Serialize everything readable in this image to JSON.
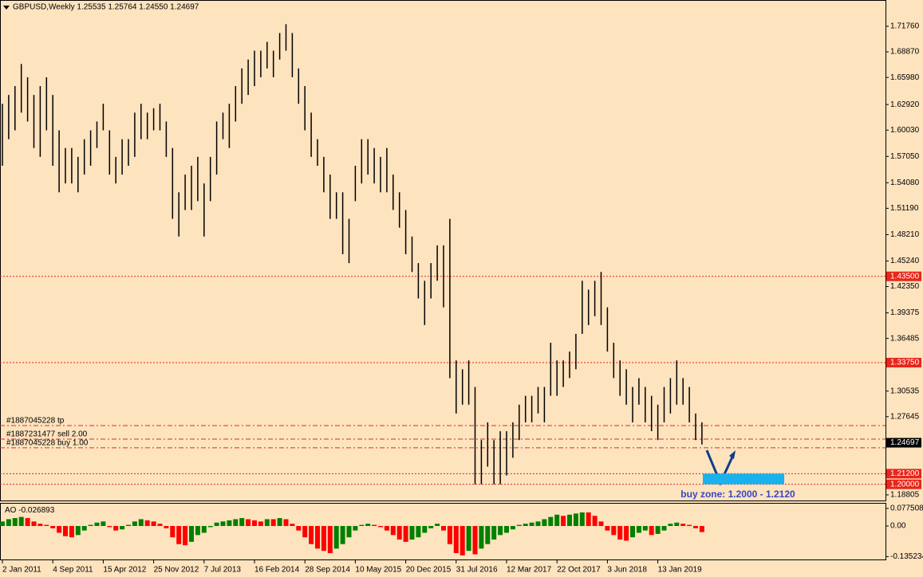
{
  "chart_data": [
    {
      "type": "bar",
      "header": "GBPUSD,Weekly  1.25535 1.25764 1.24550 1.24697",
      "color": "#000000",
      "categories": [
        "2 Jan 2011",
        null,
        null,
        null,
        null,
        null,
        null,
        null,
        "4 Sep 2011",
        null,
        null,
        null,
        null,
        null,
        null,
        null,
        "15 Apr 2012",
        null,
        null,
        null,
        null,
        null,
        null,
        null,
        "25 Nov 2012",
        null,
        null,
        null,
        null,
        null,
        null,
        null,
        "7 Jul 2013",
        null,
        null,
        null,
        null,
        null,
        null,
        null,
        "16 Feb 2014",
        null,
        null,
        null,
        null,
        null,
        null,
        null,
        "28 Sep 2014",
        null,
        null,
        null,
        null,
        null,
        null,
        null,
        "10 May 2015",
        null,
        null,
        null,
        null,
        null,
        null,
        null,
        "20 Dec 2015",
        null,
        null,
        null,
        null,
        null,
        null,
        null,
        "31 Jul 2016",
        null,
        null,
        null,
        null,
        null,
        null,
        null,
        "12 Mar 2017",
        null,
        null,
        null,
        null,
        null,
        null,
        null,
        "22 Oct 2017",
        null,
        null,
        null,
        null,
        null,
        null,
        null,
        "3 Jun 2018",
        null,
        null,
        null,
        null,
        null,
        null,
        null,
        "13 Jan 2019",
        null,
        null,
        null,
        null,
        null,
        null,
        null
      ],
      "series": [
        {
          "name": "high",
          "values": [
            1.63,
            1.64,
            1.65,
            1.675,
            1.66,
            1.64,
            1.65,
            1.66,
            1.64,
            1.6,
            1.58,
            1.58,
            1.57,
            1.59,
            1.6,
            1.61,
            1.63,
            1.6,
            1.57,
            1.59,
            1.59,
            1.62,
            1.63,
            1.62,
            1.625,
            1.63,
            1.61,
            1.58,
            1.53,
            1.55,
            1.56,
            1.57,
            1.54,
            1.57,
            1.61,
            1.62,
            1.63,
            1.65,
            1.67,
            1.68,
            1.69,
            1.69,
            1.7,
            1.69,
            1.71,
            1.72,
            1.71,
            1.67,
            1.65,
            1.62,
            1.59,
            1.57,
            1.55,
            1.53,
            1.53,
            1.5,
            1.56,
            1.59,
            1.59,
            1.58,
            1.57,
            1.58,
            1.55,
            1.53,
            1.51,
            1.48,
            1.45,
            1.43,
            1.45,
            1.47,
            1.47,
            1.5,
            1.34,
            1.33,
            1.34,
            1.31,
            1.25,
            1.27,
            1.25,
            1.26,
            1.26,
            1.27,
            1.29,
            1.3,
            1.3,
            1.31,
            1.31,
            1.36,
            1.34,
            1.34,
            1.35,
            1.37,
            1.43,
            1.42,
            1.43,
            1.44,
            1.4,
            1.36,
            1.34,
            1.33,
            1.31,
            1.32,
            1.31,
            1.3,
            1.29,
            1.31,
            1.32,
            1.34,
            1.32,
            1.31,
            1.28,
            1.27
          ]
        },
        {
          "name": "low",
          "values": [
            1.56,
            1.59,
            1.6,
            1.62,
            1.61,
            1.58,
            1.57,
            1.6,
            1.56,
            1.53,
            1.54,
            1.54,
            1.53,
            1.55,
            1.56,
            1.58,
            1.6,
            1.55,
            1.54,
            1.55,
            1.56,
            1.57,
            1.59,
            1.59,
            1.6,
            1.6,
            1.57,
            1.5,
            1.48,
            1.51,
            1.51,
            1.52,
            1.48,
            1.52,
            1.55,
            1.59,
            1.58,
            1.61,
            1.63,
            1.64,
            1.65,
            1.66,
            1.67,
            1.66,
            1.68,
            1.69,
            1.66,
            1.63,
            1.6,
            1.57,
            1.56,
            1.53,
            1.5,
            1.5,
            1.46,
            1.45,
            1.52,
            1.54,
            1.55,
            1.54,
            1.53,
            1.53,
            1.51,
            1.49,
            1.46,
            1.44,
            1.41,
            1.38,
            1.41,
            1.43,
            1.4,
            1.32,
            1.28,
            1.29,
            1.29,
            1.2,
            1.2,
            1.22,
            1.2,
            1.2,
            1.21,
            1.23,
            1.25,
            1.27,
            1.27,
            1.28,
            1.27,
            1.3,
            1.3,
            1.31,
            1.32,
            1.33,
            1.37,
            1.38,
            1.39,
            1.38,
            1.35,
            1.32,
            1.3,
            1.29,
            1.27,
            1.29,
            1.27,
            1.26,
            1.25,
            1.27,
            1.28,
            1.29,
            1.29,
            1.27,
            1.25,
            1.245
          ]
        }
      ],
      "ylim": [
        1.1817,
        1.7473
      ],
      "yticks": [
        {
          "value": 1.7176,
          "label": "1.71760"
        },
        {
          "value": 1.6887,
          "label": "1.68870"
        },
        {
          "value": 1.6598,
          "label": "1.65980"
        },
        {
          "value": 1.6292,
          "label": "1.62920"
        },
        {
          "value": 1.6003,
          "label": "1.60030"
        },
        {
          "value": 1.5705,
          "label": "1.57050"
        },
        {
          "value": 1.5408,
          "label": "1.54080"
        },
        {
          "value": 1.5119,
          "label": "1.51190"
        },
        {
          "value": 1.4821,
          "label": "1.48210"
        },
        {
          "value": 1.4524,
          "label": "1.45240"
        },
        {
          "value": 1.4235,
          "label": "1.42350"
        },
        1.39375,
        1.36485,
        1.30535,
        1.27645,
        1.18805
      ],
      "levels": [
        {
          "value": 1.435,
          "label": "1.43500"
        },
        {
          "value": 1.3375,
          "label": "1.33750"
        },
        {
          "value": 1.212,
          "label": "1.21200"
        },
        {
          "value": 1.2,
          "label": "1.20000"
        }
      ],
      "level_color": "#e8261a",
      "orders": [
        {
          "label": "#1887045228 tp",
          "value": 1.2664
        },
        {
          "label": "#1887231477 sell 2.00",
          "value": 1.2511
        },
        {
          "label": "#1887045228 buy 1.00",
          "value": 1.2412
        }
      ],
      "current_price": {
        "value": 1.24697,
        "label": "1.24697"
      },
      "buy_zone": [
        1.2,
        1.212
      ],
      "zone_color": "#1ab2ee",
      "annotation": "buy zone: 1.2000 - 1.2120"
    },
    {
      "type": "histogram",
      "title": "AO",
      "colors": [
        "#008000",
        "#ff0000"
      ],
      "values": [
        0.02,
        0.03,
        0.035,
        0.04,
        0.035,
        0.02,
        0.01,
        0.005,
        -0.01,
        -0.03,
        -0.045,
        -0.05,
        -0.04,
        -0.02,
        0.005,
        0.015,
        0.02,
        -0.005,
        -0.02,
        -0.015,
        0.005,
        0.02,
        0.03,
        0.025,
        0.02,
        0.01,
        -0.01,
        -0.05,
        -0.08,
        -0.085,
        -0.07,
        -0.04,
        -0.03,
        -0.005,
        0.015,
        0.02,
        0.025,
        0.03,
        0.035,
        0.03,
        0.025,
        0.02,
        0.03,
        0.03,
        0.035,
        0.03,
        0.01,
        -0.02,
        -0.05,
        -0.08,
        -0.1,
        -0.11,
        -0.12,
        -0.1,
        -0.08,
        -0.05,
        -0.02,
        0.005,
        0.01,
        0.005,
        -0.005,
        -0.02,
        -0.04,
        -0.06,
        -0.07,
        -0.06,
        -0.05,
        -0.03,
        -0.01,
        0.01,
        -0.02,
        -0.08,
        -0.12,
        -0.13,
        -0.11,
        -0.125,
        -0.1,
        -0.08,
        -0.06,
        -0.04,
        -0.03,
        -0.015,
        0.005,
        0.01,
        0.015,
        0.02,
        0.03,
        0.04,
        0.05,
        0.045,
        0.05,
        0.055,
        0.06,
        0.06,
        0.045,
        0.02,
        -0.02,
        -0.04,
        -0.06,
        -0.065,
        -0.05,
        -0.03,
        -0.02,
        -0.04,
        -0.035,
        -0.02,
        0.01,
        0.015,
        0.01,
        0.005,
        -0.01,
        -0.026893
      ],
      "ylim": [
        -0.1409,
        0.0986
      ],
      "yticks": [
        0.077508,
        {
          "value": 0,
          "label": "0.00"
        },
        -0.135234
      ]
    }
  ]
}
